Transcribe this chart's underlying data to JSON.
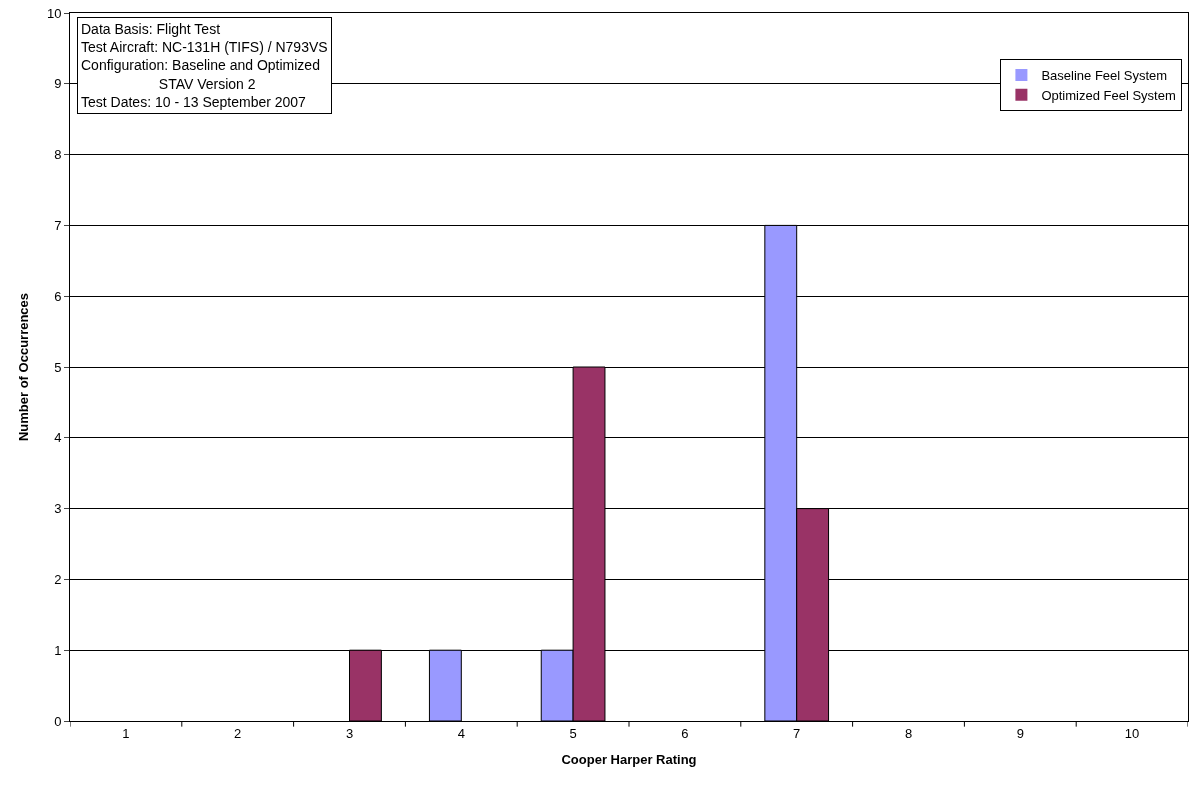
{
  "chart_data": {
    "type": "bar",
    "xlabel": "Cooper Harper Rating",
    "ylabel": "Number of Occurrences",
    "categories": [
      "1",
      "2",
      "3",
      "4",
      "5",
      "6",
      "7",
      "8",
      "9",
      "10"
    ],
    "series": [
      {
        "name": "Baseline Feel System",
        "color": "#9999ff",
        "values": [
          0,
          0,
          0,
          1,
          1,
          0,
          7,
          0,
          0,
          0
        ]
      },
      {
        "name": "Optimized Feel System",
        "color": "#993366",
        "values": [
          0,
          0,
          1,
          0,
          5,
          0,
          3,
          0,
          0,
          0
        ]
      }
    ],
    "ylim": [
      0,
      10
    ],
    "yticks": [
      0,
      1,
      2,
      3,
      4,
      5,
      6,
      7,
      8,
      9,
      10
    ],
    "grid": "y",
    "legend": "top right",
    "annotations": [
      "Data Basis: Flight Test\nTest Aircraft: NC-131H (TIFS) / N793VS\nConfiguration: Baseline and Optimized\n                    STAV Version 2\nTest Dates: 10 - 13 September 2007"
    ]
  }
}
